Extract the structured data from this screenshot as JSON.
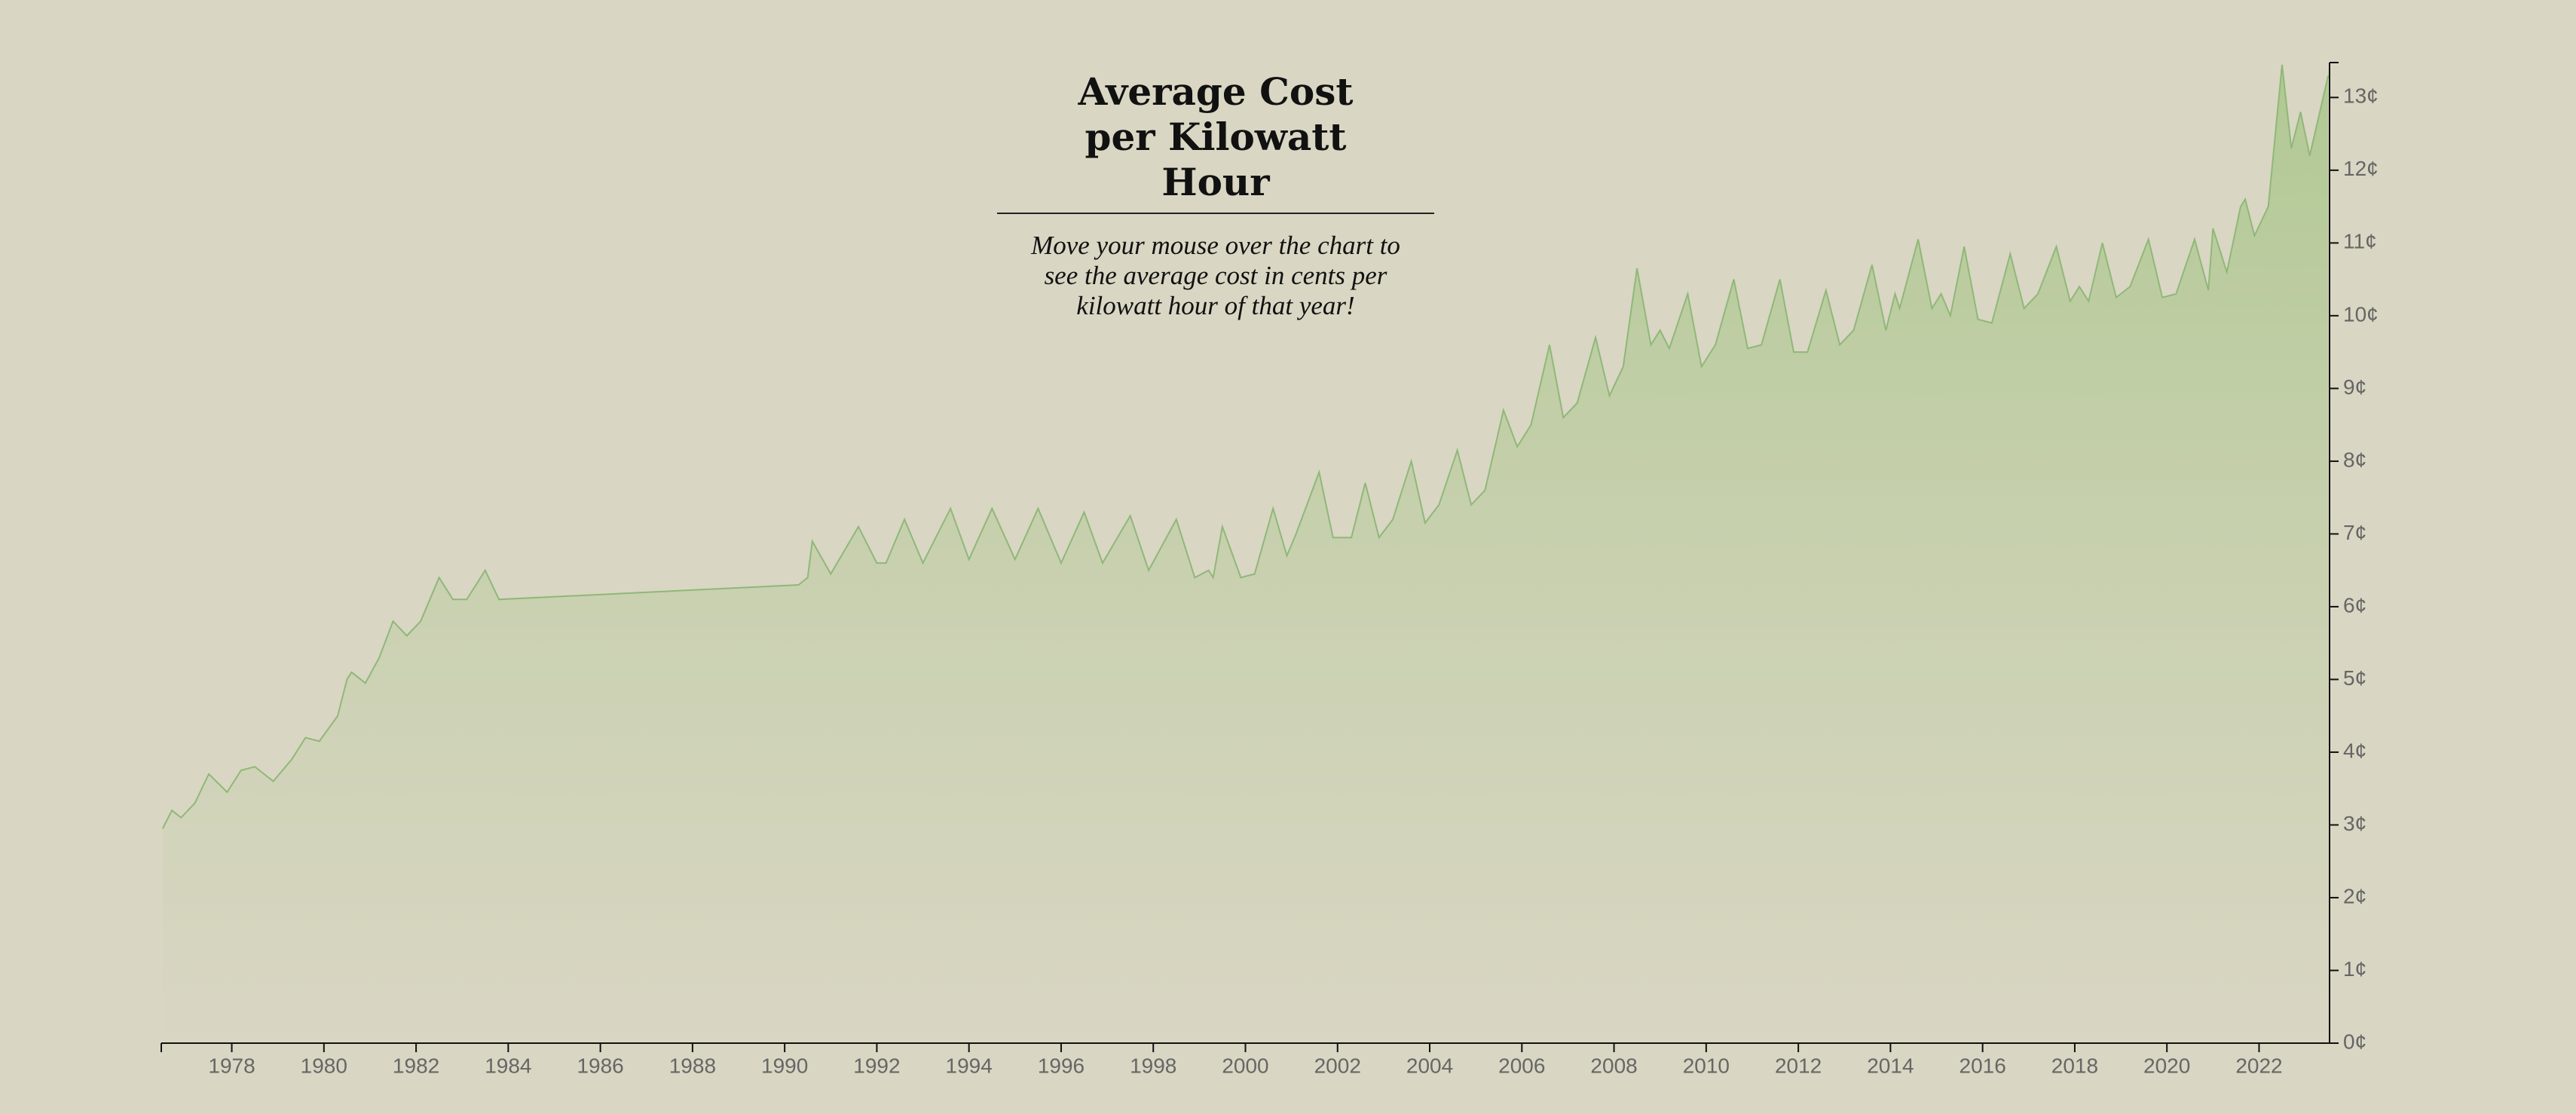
{
  "chart_data": {
    "type": "area",
    "title": "Average Cost per Kilowatt Hour",
    "subtitle": "Move your mouse over the chart to see the average cost in cents per kilowatt hour of that year!",
    "x": [
      1976.5,
      1976.7,
      1976.9,
      1977.2,
      1977.5,
      1977.9,
      1978.2,
      1978.5,
      1978.9,
      1979.3,
      1979.6,
      1979.9,
      1980.3,
      1980.5,
      1980.6,
      1980.9,
      1981.2,
      1981.5,
      1981.8,
      1982.1,
      1982.5,
      1982.8,
      1983.1,
      1983.2,
      1983.5,
      1983.8,
      1990.3,
      1990.5,
      1990.6,
      1991.0,
      1991.6,
      1992.0,
      1992.2,
      1992.6,
      1993.0,
      1993.6,
      1994.0,
      1994.5,
      1995.0,
      1995.5,
      1996.0,
      1996.5,
      1996.9,
      1997.5,
      1997.9,
      1998.5,
      1998.9,
      1999.2,
      1999.3,
      1999.5,
      1999.9,
      2000.2,
      2000.6,
      2000.9,
      2001.1,
      2001.6,
      2001.9,
      2002.3,
      2002.6,
      2002.9,
      2003.2,
      2003.6,
      2003.9,
      2004.2,
      2004.6,
      2004.9,
      2005.2,
      2005.6,
      2005.9,
      2006.2,
      2006.6,
      2006.9,
      2007.2,
      2007.6,
      2007.9,
      2008.2,
      2008.5,
      2008.8,
      2009.0,
      2009.2,
      2009.6,
      2009.9,
      2010.2,
      2010.6,
      2010.9,
      2011.2,
      2011.6,
      2011.9,
      2012.2,
      2012.6,
      2012.9,
      2013.2,
      2013.6,
      2013.9,
      2014.1,
      2014.2,
      2014.6,
      2014.9,
      2015.1,
      2015.3,
      2015.6,
      2015.9,
      2016.2,
      2016.6,
      2016.9,
      2017.2,
      2017.6,
      2017.9,
      2018.1,
      2018.3,
      2018.6,
      2018.9,
      2019.2,
      2019.6,
      2019.9,
      2020.2,
      2020.6,
      2020.9,
      2021.0,
      2021.3,
      2021.6,
      2021.7,
      2021.9,
      2022.2,
      2022.5,
      2022.7,
      2022.9,
      2023.1,
      2023.5
    ],
    "series": [
      {
        "color": "#8fb878",
        "values": [
          2.95,
          3.2,
          3.1,
          3.3,
          3.7,
          3.45,
          3.75,
          3.8,
          3.6,
          3.9,
          4.2,
          4.15,
          4.5,
          5.0,
          5.1,
          4.95,
          5.3,
          5.8,
          5.6,
          5.8,
          6.4,
          6.1,
          6.1,
          6.2,
          6.5,
          6.1,
          6.3,
          6.4,
          6.9,
          6.45,
          7.1,
          6.6,
          6.6,
          7.2,
          6.6,
          7.35,
          6.65,
          7.35,
          6.65,
          7.35,
          6.6,
          7.3,
          6.6,
          7.25,
          6.5,
          7.2,
          6.4,
          6.5,
          6.4,
          7.1,
          6.4,
          6.45,
          7.35,
          6.7,
          7.0,
          7.85,
          6.95,
          6.95,
          7.7,
          6.95,
          7.2,
          8.0,
          7.15,
          7.4,
          8.15,
          7.4,
          7.6,
          8.7,
          8.2,
          8.5,
          9.6,
          8.6,
          8.8,
          9.7,
          8.9,
          9.3,
          10.65,
          9.6,
          9.8,
          9.55,
          10.3,
          9.3,
          9.6,
          10.5,
          9.55,
          9.6,
          10.5,
          9.5,
          9.5,
          10.35,
          9.6,
          9.8,
          10.7,
          9.8,
          10.3,
          10.1,
          11.05,
          10.1,
          10.3,
          10.0,
          10.95,
          9.95,
          9.9,
          10.85,
          10.1,
          10.3,
          10.95,
          10.2,
          10.4,
          10.2,
          11.0,
          10.25,
          10.4,
          11.05,
          10.25,
          10.3,
          11.05,
          10.35,
          11.2,
          10.6,
          11.5,
          11.6,
          11.1,
          11.5,
          13.45,
          12.3,
          12.8,
          12.2,
          13.3
        ]
      }
    ],
    "xlim": [
      1976.47,
      2023.53
    ],
    "xticks": [
      1978,
      1980,
      1982,
      1984,
      1986,
      1988,
      1990,
      1992,
      1994,
      1996,
      1998,
      2000,
      2002,
      2004,
      2006,
      2008,
      2010,
      2012,
      2014,
      2016,
      2018,
      2020,
      2022
    ],
    "ylim": [
      0,
      13.48
    ],
    "yticks": [
      {
        "value": 0,
        "label": "0¢"
      },
      {
        "value": 1,
        "label": "1¢"
      },
      {
        "value": 2,
        "label": "2¢"
      },
      {
        "value": 3,
        "label": "3¢"
      },
      {
        "value": 4,
        "label": "4¢"
      },
      {
        "value": 5,
        "label": "5¢"
      },
      {
        "value": 6,
        "label": "6¢"
      },
      {
        "value": 7,
        "label": "7¢"
      },
      {
        "value": 8,
        "label": "8¢"
      },
      {
        "value": 9,
        "label": "9¢"
      },
      {
        "value": 10,
        "label": "10¢"
      },
      {
        "value": 11,
        "label": "11¢"
      },
      {
        "value": 12,
        "label": "12¢"
      },
      {
        "value": 13,
        "label": "13¢"
      }
    ]
  }
}
